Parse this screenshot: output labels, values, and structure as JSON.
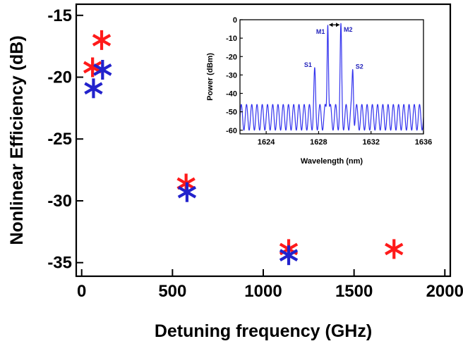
{
  "chart_data": [
    {
      "type": "scatter",
      "title": "",
      "xlabel": "Detuning  frequency (GHz)",
      "ylabel": "Nonlinear Efficiency (dB)",
      "xlim": [
        -30,
        2030
      ],
      "ylim": [
        -36.1,
        -14.1
      ],
      "xticks": [
        0,
        500,
        1000,
        1500,
        2000
      ],
      "yticks": [
        -15,
        -20,
        -25,
        -30,
        -35
      ],
      "xtick_labels": [
        "0",
        "500",
        "1000",
        "1500",
        "2000"
      ],
      "ytick_labels": [
        "-15",
        "-20",
        "-25",
        "-30",
        "-35"
      ],
      "marker": "asterisk",
      "grid": false,
      "series": [
        {
          "color": "#ff1a1a",
          "points": [
            {
              "x": 60,
              "y": -19.2
            },
            {
              "x": 110,
              "y": -17.0
            },
            {
              "x": 575,
              "y": -28.6
            },
            {
              "x": 1140,
              "y": -33.9
            },
            {
              "x": 1720,
              "y": -33.9
            }
          ]
        },
        {
          "color": "#2222cc",
          "points": [
            {
              "x": 65,
              "y": -20.9
            },
            {
              "x": 115,
              "y": -19.4
            },
            {
              "x": 580,
              "y": -29.3
            },
            {
              "x": 1140,
              "y": -34.4
            }
          ]
        }
      ]
    },
    {
      "type": "line",
      "title": "",
      "xlabel": "Wavelength (nm)",
      "ylabel": "Power (dBm)",
      "xlim": [
        1622,
        1636
      ],
      "ylim": [
        -62,
        0
      ],
      "xticks": [
        1624,
        1628,
        1632,
        1636
      ],
      "yticks": [
        0,
        -10,
        -20,
        -30,
        -40,
        -50,
        -60
      ],
      "xtick_labels": [
        "1624",
        "1628",
        "1632",
        "1636"
      ],
      "ytick_labels": [
        "0",
        "-10",
        "-20",
        "-30",
        "-40",
        "-50",
        "-60"
      ],
      "grid": false,
      "series": [
        {
          "color": "#3333ee",
          "ripple": {
            "period_nm": 0.4,
            "top_dbm": -46,
            "bottom_dbm": -60
          },
          "peaks": [
            {
              "label": "M1",
              "x": 1628.7,
              "y": -3
            },
            {
              "label": "M2",
              "x": 1629.7,
              "y": -2
            },
            {
              "label": "S1",
              "x": 1627.7,
              "y": -26
            },
            {
              "label": "S2",
              "x": 1630.6,
              "y": -27
            }
          ]
        }
      ],
      "annotations": [
        {
          "type": "double-arrow",
          "from_x": 1628.7,
          "to_x": 1629.7,
          "y": -2
        }
      ]
    }
  ]
}
